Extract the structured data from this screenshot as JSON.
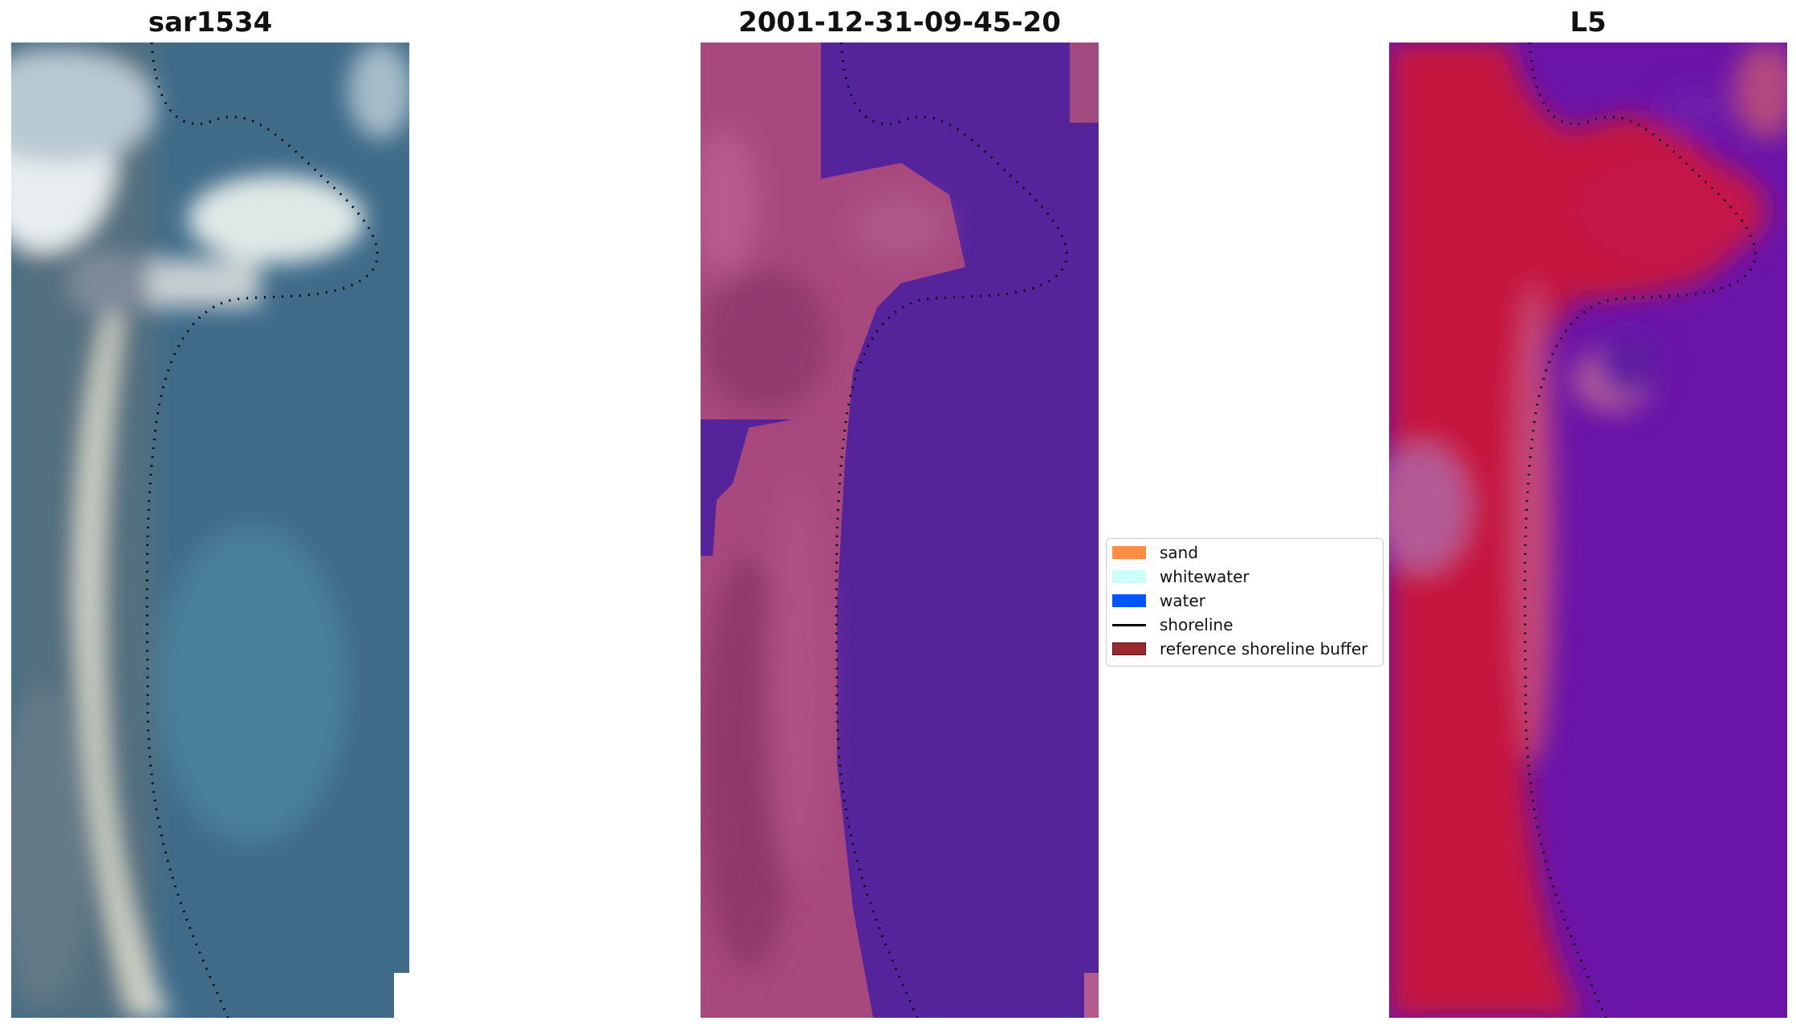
{
  "panels": [
    {
      "title": "sar1534"
    },
    {
      "title": "2001-12-31-09-45-20"
    },
    {
      "title": "L5"
    }
  ],
  "legend": {
    "placement": "center",
    "items": [
      {
        "label": "sand",
        "color": "#ff8c42",
        "kind": "patch"
      },
      {
        "label": "whitewater",
        "color": "#ccfffb",
        "kind": "patch"
      },
      {
        "label": "water",
        "color": "#0055ff",
        "kind": "patch"
      },
      {
        "label": "shoreline",
        "color": "#000000",
        "kind": "line"
      },
      {
        "label": "reference shoreline buffer",
        "color": "#9b2a2f",
        "kind": "patch"
      }
    ]
  },
  "colors": {
    "rgb_water": "#3e6c8c",
    "rgb_sand": "#d6d8cf",
    "class_water": "#55249a",
    "class_sand": "#a8497e",
    "nir_sand": "#c8143c",
    "nir_water": "#6a14a8"
  }
}
